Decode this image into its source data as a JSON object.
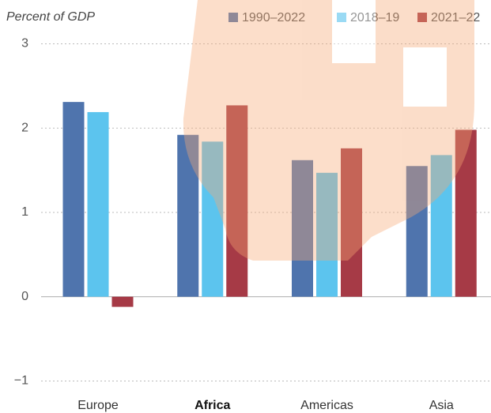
{
  "chart_data": {
    "type": "bar",
    "y_label": "Percent of GDP",
    "categories": [
      "Europe",
      "Africa",
      "Americas",
      "Asia"
    ],
    "series": [
      {
        "name": "1990–2022",
        "color": "#4f74ad",
        "values": [
          2.31,
          1.92,
          1.62,
          1.55
        ]
      },
      {
        "name": "2018–19",
        "color": "#5cc4ee",
        "values": [
          2.19,
          1.84,
          1.47,
          1.68
        ]
      },
      {
        "name": "2021–22",
        "color": "#a63a46",
        "values": [
          -0.12,
          2.27,
          1.76,
          1.98
        ]
      }
    ],
    "ylim": [
      -1.07,
      3.07
    ],
    "yticks": [
      3,
      2,
      1,
      0,
      {
        "value": -1,
        "label": "−1"
      }
    ],
    "grid": true
  }
}
